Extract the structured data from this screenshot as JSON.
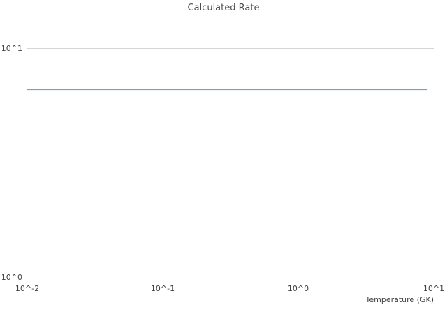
{
  "chart": {
    "title": "Calculated Rate"
  },
  "chart_data": {
    "type": "line",
    "title": "Calculated Rate",
    "xlabel": "Temperature (GK)",
    "ylabel": "",
    "x_scale": "log",
    "y_scale": "log",
    "xlim": [
      0.01,
      10
    ],
    "ylim": [
      1,
      10
    ],
    "grid": false,
    "legend": false,
    "x_ticks": [
      {
        "label": "10^-2",
        "value": 0.01
      },
      {
        "label": "10^-1",
        "value": 0.1
      },
      {
        "label": "10^0",
        "value": 1
      },
      {
        "label": "10^1",
        "value": 10
      }
    ],
    "y_ticks": [
      {
        "label": "10^0",
        "value": 1
      },
      {
        "label": "10^1",
        "value": 10
      }
    ],
    "series": [
      {
        "name": "Calculated Rate",
        "color": "#66a5da",
        "line_width": 2,
        "x": [
          0.01,
          9
        ],
        "y": [
          6.65,
          6.65
        ]
      }
    ]
  }
}
